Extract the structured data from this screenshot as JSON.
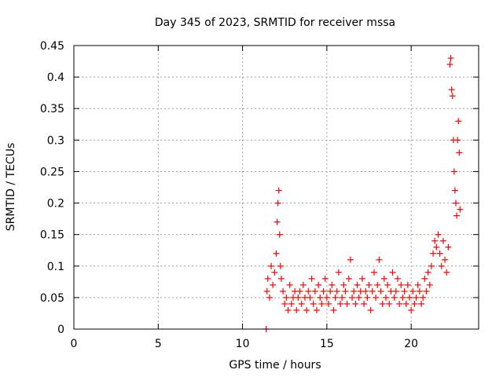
{
  "chart_data": {
    "type": "scatter",
    "title": "Day 345 of 2023, SRMTID for receiver mssa",
    "xlabel": "GPS time / hours",
    "ylabel": "SRMTID / TECUs",
    "xlim": [
      0,
      24
    ],
    "ylim": [
      0,
      0.45
    ],
    "x_ticks": [
      "0",
      "5",
      "10",
      "15",
      "20"
    ],
    "y_ticks": [
      "0",
      "0.05",
      "0.1",
      "0.15",
      "0.2",
      "0.25",
      "0.3",
      "0.35",
      "0.4",
      "0.45"
    ],
    "x_tick_values": [
      0,
      5,
      10,
      15,
      20
    ],
    "y_tick_values": [
      0,
      0.05,
      0.1,
      0.15,
      0.2,
      0.25,
      0.3,
      0.35,
      0.4,
      0.45
    ],
    "grid": true,
    "marker": "plus",
    "color": "#ff0000",
    "series": [
      {
        "name": "SRMTID",
        "x": [
          11.4,
          11.45,
          11.5,
          11.6,
          11.7,
          11.8,
          11.9,
          12.0,
          12.05,
          12.1,
          12.15,
          12.2,
          12.25,
          12.3,
          12.4,
          12.5,
          12.6,
          12.7,
          12.8,
          12.9,
          13.0,
          13.1,
          13.2,
          13.3,
          13.4,
          13.5,
          13.6,
          13.7,
          13.8,
          13.9,
          14.0,
          14.1,
          14.2,
          14.3,
          14.4,
          14.5,
          14.6,
          14.7,
          14.8,
          14.9,
          15.0,
          15.1,
          15.2,
          15.3,
          15.4,
          15.5,
          15.6,
          15.7,
          15.8,
          15.9,
          16.0,
          16.1,
          16.2,
          16.3,
          16.4,
          16.5,
          16.6,
          16.7,
          16.8,
          16.9,
          17.0,
          17.1,
          17.2,
          17.3,
          17.4,
          17.5,
          17.6,
          17.7,
          17.8,
          17.9,
          18.0,
          18.1,
          18.2,
          18.3,
          18.4,
          18.5,
          18.6,
          18.7,
          18.8,
          18.9,
          19.0,
          19.1,
          19.2,
          19.3,
          19.4,
          19.5,
          19.6,
          19.7,
          19.8,
          19.9,
          20.0,
          20.1,
          20.2,
          20.3,
          20.4,
          20.5,
          20.6,
          20.7,
          20.8,
          20.9,
          21.0,
          21.1,
          21.2,
          21.3,
          21.4,
          21.5,
          21.6,
          21.7,
          21.8,
          21.9,
          22.0,
          22.1,
          22.2,
          22.3,
          22.35,
          22.4,
          22.45,
          22.5,
          22.55,
          22.6,
          22.65,
          22.7,
          22.75,
          22.8,
          22.85,
          22.9
        ],
        "y": [
          0.0,
          0.06,
          0.08,
          0.05,
          0.1,
          0.07,
          0.09,
          0.12,
          0.17,
          0.2,
          0.22,
          0.15,
          0.1,
          0.08,
          0.06,
          0.04,
          0.05,
          0.03,
          0.07,
          0.04,
          0.05,
          0.06,
          0.03,
          0.05,
          0.06,
          0.04,
          0.07,
          0.05,
          0.03,
          0.06,
          0.05,
          0.08,
          0.04,
          0.06,
          0.03,
          0.07,
          0.05,
          0.04,
          0.06,
          0.08,
          0.05,
          0.04,
          0.06,
          0.07,
          0.03,
          0.05,
          0.06,
          0.09,
          0.04,
          0.05,
          0.07,
          0.06,
          0.04,
          0.08,
          0.11,
          0.05,
          0.06,
          0.04,
          0.07,
          0.05,
          0.06,
          0.08,
          0.04,
          0.06,
          0.05,
          0.07,
          0.03,
          0.06,
          0.09,
          0.05,
          0.07,
          0.11,
          0.06,
          0.04,
          0.08,
          0.05,
          0.07,
          0.04,
          0.06,
          0.09,
          0.05,
          0.06,
          0.08,
          0.04,
          0.07,
          0.05,
          0.06,
          0.04,
          0.07,
          0.05,
          0.03,
          0.06,
          0.04,
          0.05,
          0.07,
          0.06,
          0.04,
          0.05,
          0.08,
          0.06,
          0.09,
          0.07,
          0.1,
          0.12,
          0.14,
          0.13,
          0.15,
          0.12,
          0.1,
          0.14,
          0.11,
          0.09,
          0.13,
          0.42,
          0.43,
          0.38,
          0.37,
          0.3,
          0.25,
          0.22,
          0.2,
          0.18,
          0.3,
          0.33,
          0.28,
          0.19
        ]
      }
    ]
  }
}
